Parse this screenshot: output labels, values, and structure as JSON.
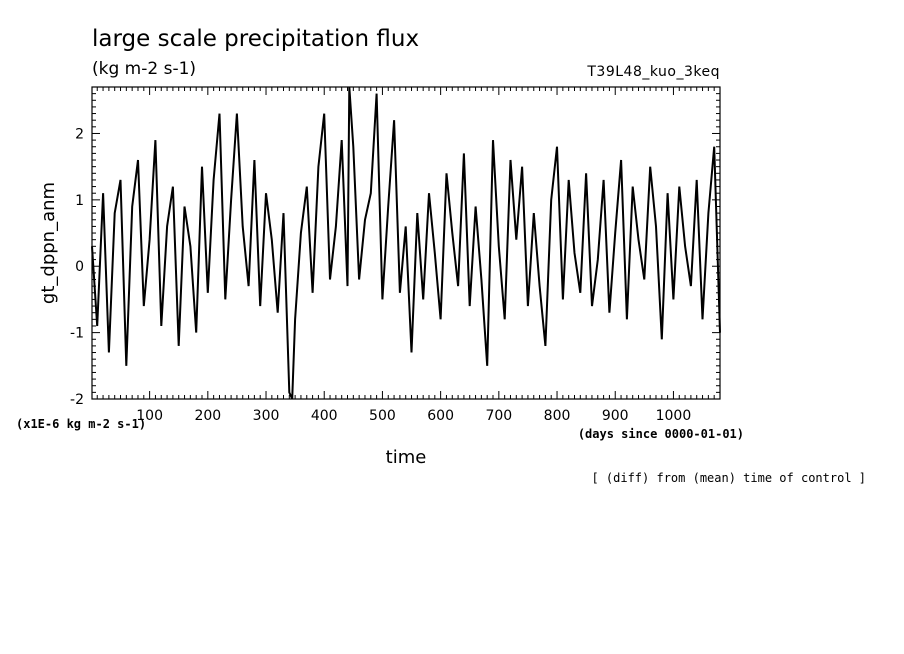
{
  "chart_data": {
    "type": "line",
    "title": "large scale precipitation flux",
    "subtitle": "(kg m-2 s-1)",
    "run_label": "T39L48_kuo_3keq",
    "xlabel": "time",
    "ylabel": "gt_dppn_anm",
    "x_unit_label": "(days since 0000-01-01)",
    "y_unit_label": "(x1E-6 kg m-2 s-1)",
    "footnote": "[ (diff) from (mean) time of control ]",
    "xlim": [
      1,
      1080
    ],
    "ylim": [
      -2,
      2.7
    ],
    "x_ticks": [
      100,
      200,
      300,
      400,
      500,
      600,
      700,
      800,
      900,
      1000
    ],
    "x_tick_labels": [
      "100",
      "200",
      "300",
      "400",
      "500",
      "600",
      "700",
      "800",
      "900",
      "1000"
    ],
    "y_ticks": [
      -2,
      -1,
      0,
      1,
      2
    ],
    "y_tick_labels": [
      "-2",
      "-1",
      "0",
      "1",
      "2"
    ],
    "series": [
      {
        "x": [
          1,
          10,
          20,
          30,
          40,
          50,
          60,
          70,
          80,
          90,
          100,
          110,
          120,
          130,
          140,
          150,
          160,
          170,
          180,
          190,
          200,
          210,
          220,
          230,
          240,
          250,
          260,
          270,
          280,
          290,
          300,
          310,
          320,
          330,
          340,
          345,
          350,
          360,
          370,
          380,
          390,
          400,
          410,
          420,
          430,
          440,
          443,
          450,
          460,
          470,
          480,
          490,
          500,
          510,
          520,
          530,
          540,
          550,
          560,
          570,
          580,
          590,
          600,
          610,
          620,
          630,
          640,
          650,
          660,
          670,
          680,
          690,
          700,
          710,
          720,
          730,
          740,
          750,
          760,
          770,
          780,
          790,
          800,
          810,
          820,
          830,
          840,
          850,
          860,
          870,
          880,
          890,
          900,
          910,
          920,
          930,
          940,
          950,
          960,
          970,
          980,
          990,
          1000,
          1010,
          1020,
          1030,
          1040,
          1050,
          1060,
          1070,
          1080
        ],
        "values": [
          0.3,
          -0.9,
          1.1,
          -1.3,
          0.8,
          1.3,
          -1.5,
          0.9,
          1.6,
          -0.6,
          0.4,
          1.9,
          -0.9,
          0.6,
          1.2,
          -1.2,
          0.9,
          0.3,
          -1.0,
          1.5,
          -0.4,
          1.3,
          2.3,
          -0.5,
          1.0,
          2.3,
          0.6,
          -0.3,
          1.6,
          -0.6,
          1.1,
          0.4,
          -0.7,
          0.8,
          -1.9,
          -2.0,
          -0.8,
          0.5,
          1.2,
          -0.4,
          1.5,
          2.3,
          -0.2,
          0.6,
          1.9,
          -0.3,
          2.7,
          1.8,
          -0.2,
          0.7,
          1.1,
          2.6,
          -0.5,
          0.9,
          2.2,
          -0.4,
          0.6,
          -1.3,
          0.8,
          -0.5,
          1.1,
          0.2,
          -0.8,
          1.4,
          0.5,
          -0.3,
          1.7,
          -0.6,
          0.9,
          -0.2,
          -1.5,
          1.9,
          0.3,
          -0.8,
          1.6,
          0.4,
          1.5,
          -0.6,
          0.8,
          -0.3,
          -1.2,
          1.0,
          1.8,
          -0.5,
          1.3,
          0.2,
          -0.4,
          1.4,
          -0.6,
          0.1,
          1.3,
          -0.7,
          0.5,
          1.6,
          -0.8,
          1.2,
          0.4,
          -0.2,
          1.5,
          0.6,
          -1.1,
          1.1,
          -0.5,
          1.2,
          0.3,
          -0.3,
          1.3,
          -0.8,
          0.8,
          1.8,
          -1.0
        ]
      }
    ],
    "grid": false,
    "legend": "none"
  }
}
